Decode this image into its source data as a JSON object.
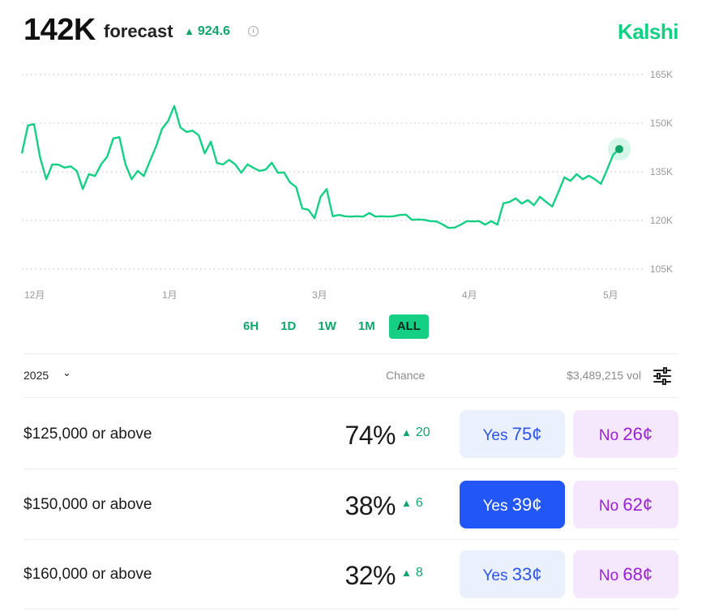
{
  "header": {
    "value": "142K",
    "label": "forecast",
    "change": "924.6",
    "brand": "Kalshi"
  },
  "colors": {
    "accent": "#14cf84",
    "up": "#0fa56b",
    "yes": "#2356f6",
    "no": "#9c1fd4"
  },
  "chart_data": {
    "type": "line",
    "y_ticks": [
      "165K",
      "150K",
      "135K",
      "120K",
      "105K"
    ],
    "y_tick_values": [
      165000,
      150000,
      135000,
      120000,
      105000
    ],
    "x_ticks": [
      "12月",
      "1月",
      "3月",
      "4月",
      "5月"
    ],
    "ylim": [
      105000,
      165000
    ],
    "grid": "dotted horizontal",
    "series": [
      {
        "values": [
          141000,
          149000,
          150000,
          139000,
          133000,
          137000,
          137500,
          136000,
          137000,
          135000,
          130000,
          134000,
          134000,
          137000,
          140000,
          145000,
          146000,
          137000,
          133000,
          135000,
          134000,
          138000,
          143000,
          148000,
          151000,
          155000,
          149000,
          147000,
          148000,
          146000,
          141000,
          144000,
          138000,
          137000,
          139000,
          137000,
          135000,
          137000,
          136500,
          135000,
          136000,
          137500,
          135000,
          134500,
          132000,
          130000,
          124000,
          123000,
          121000,
          127000,
          130000,
          121000,
          122000,
          121000,
          121500,
          121000,
          121500,
          122000,
          121500,
          121000,
          121500,
          121000,
          122000,
          121500,
          120500,
          120000,
          120500,
          119500,
          120000,
          118500,
          118000,
          117500,
          119000,
          119500,
          120000,
          119500,
          119000,
          119500,
          119000,
          125000,
          126000,
          126500,
          125500,
          126000,
          125000,
          127000,
          126000,
          124000,
          129000,
          133000,
          132500,
          134000,
          133000,
          133500,
          133000,
          131000,
          136000,
          140000,
          142000
        ]
      }
    ],
    "last_value": 142000
  },
  "ranges": [
    "6H",
    "1D",
    "1W",
    "1M",
    "ALL"
  ],
  "active_range": "ALL",
  "toolbar": {
    "year": "2025",
    "chance_label": "Chance",
    "volume": "$3,489,215 vol"
  },
  "markets": [
    {
      "label": "$125,000 or above",
      "chance": "74%",
      "change": "20",
      "yes_label": "Yes",
      "yes_price": "75¢",
      "no_label": "No",
      "no_price": "26¢",
      "selected": false
    },
    {
      "label": "$150,000 or above",
      "chance": "38%",
      "change": "6",
      "yes_label": "Yes",
      "yes_price": "39¢",
      "no_label": "No",
      "no_price": "62¢",
      "selected": true
    },
    {
      "label": "$160,000 or above",
      "chance": "32%",
      "change": "8",
      "yes_label": "Yes",
      "yes_price": "33¢",
      "no_label": "No",
      "no_price": "68¢",
      "selected": false
    }
  ]
}
